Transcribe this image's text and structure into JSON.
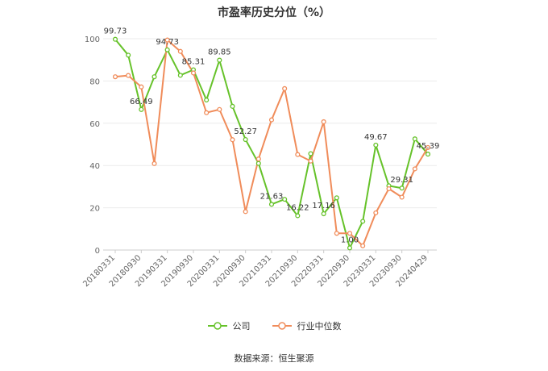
{
  "chart_data": {
    "type": "line",
    "title": "市盈率历史分位（%）",
    "source": "数据来源：恒生聚源",
    "ylim": [
      0,
      100
    ],
    "yticks": [
      0,
      20,
      40,
      60,
      80,
      100
    ],
    "grid": true,
    "legend_position": "bottom",
    "x_tick_labels": [
      "20180331",
      "20180930",
      "20190331",
      "20190930",
      "20200331",
      "20200930",
      "20210331",
      "20210930",
      "20220331",
      "20220930",
      "20230331",
      "20230930",
      "20240429"
    ],
    "series": [
      {
        "name": "公司",
        "color": "#66c22a",
        "values": [
          99.73,
          92.2,
          66.49,
          82,
          94.73,
          82.7,
          85.31,
          71,
          89.85,
          68,
          52.27,
          41,
          21.63,
          24,
          16.22,
          45.6,
          17.16,
          24.7,
          1.0,
          13.6,
          49.67,
          30.4,
          29.31,
          52.6,
          45.39
        ]
      },
      {
        "name": "行业中位数",
        "color": "#f08c5a",
        "values": [
          82,
          82.6,
          77.2,
          40.9,
          99.4,
          94,
          83.8,
          65,
          66.5,
          52.2,
          18.2,
          43.1,
          61.6,
          76.4,
          45.2,
          42.1,
          60.7,
          7.9,
          7.9,
          2.0,
          17.6,
          29,
          25,
          38.4,
          48.5
        ]
      }
    ],
    "point_labels": [
      {
        "series": 0,
        "index": 0,
        "text": "99.73"
      },
      {
        "series": 0,
        "index": 2,
        "text": "66.49"
      },
      {
        "series": 0,
        "index": 4,
        "text": "94.73"
      },
      {
        "series": 0,
        "index": 6,
        "text": "85.31"
      },
      {
        "series": 0,
        "index": 8,
        "text": "89.85"
      },
      {
        "series": 0,
        "index": 10,
        "text": "52.27"
      },
      {
        "series": 0,
        "index": 12,
        "text": "21.63"
      },
      {
        "series": 0,
        "index": 14,
        "text": "16.22"
      },
      {
        "series": 0,
        "index": 16,
        "text": "17.16"
      },
      {
        "series": 0,
        "index": 18,
        "text": "1.00"
      },
      {
        "series": 0,
        "index": 20,
        "text": "49.67"
      },
      {
        "series": 0,
        "index": 22,
        "text": "29.31"
      },
      {
        "series": 0,
        "index": 24,
        "text": "45.39"
      }
    ]
  }
}
